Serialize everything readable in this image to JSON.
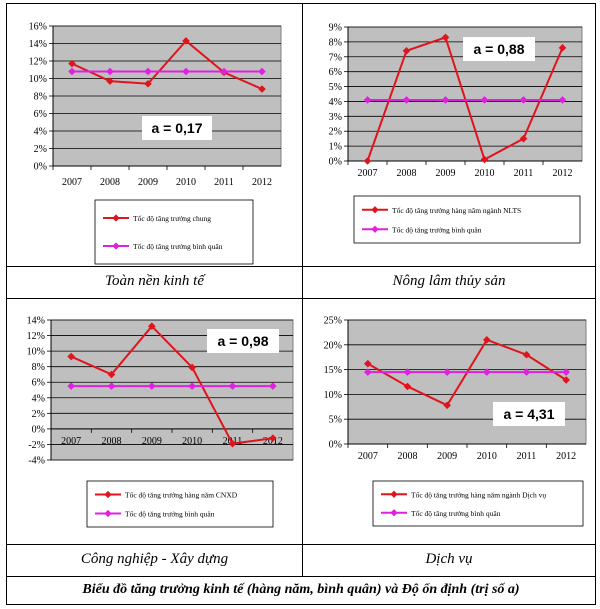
{
  "colors": {
    "series_red": "#e0141c",
    "series_magenta": "#e020e0",
    "plot_bg": "#bfbfbf",
    "grid": "#000000"
  },
  "legend_markers": {
    "line": "diamond-marker-icon"
  },
  "captions": [
    "Toàn nền kinh tế",
    "Nông lâm thủy sản",
    "Công nghiệp - Xây dựng",
    "Dịch vụ"
  ],
  "footer": "Biểu đồ tăng trưởng kinh tế (hàng năm, bình quân) và Độ ổn định (trị số a)",
  "chart_data": [
    {
      "type": "line",
      "title": "Toàn nền kinh tế",
      "categories": [
        "2007",
        "2008",
        "2009",
        "2010",
        "2011",
        "2012"
      ],
      "y_ticks": [
        "0%",
        "2%",
        "4%",
        "6%",
        "8%",
        "10%",
        "12%",
        "14%",
        "16%"
      ],
      "ylim": [
        0,
        16
      ],
      "annotation": "a = 0,17",
      "series": [
        {
          "name": "Tốc độ tăng trưởng chung",
          "values": [
            11.7,
            9.7,
            9.4,
            14.3,
            10.7,
            8.8
          ]
        },
        {
          "name": "Tốc độ tăng trưởng bình quân",
          "values": [
            10.8,
            10.8,
            10.8,
            10.8,
            10.8,
            10.8
          ]
        }
      ]
    },
    {
      "type": "line",
      "title": "Nông lâm thủy sản",
      "categories": [
        "2007",
        "2008",
        "2009",
        "2010",
        "2011",
        "2012"
      ],
      "y_ticks": [
        "0%",
        "1%",
        "2%",
        "3%",
        "4%",
        "5%",
        "6%",
        "7%",
        "8%",
        "9%"
      ],
      "ylim": [
        0,
        9
      ],
      "annotation": "a = 0,88",
      "series": [
        {
          "name": "Tốc độ tăng trưởng hàng năm ngành NLTS",
          "values": [
            0,
            7.4,
            8.3,
            0.1,
            1.5,
            7.6
          ]
        },
        {
          "name": "Tốc độ tăng trưởng bình quân",
          "values": [
            4.1,
            4.1,
            4.1,
            4.1,
            4.1,
            4.1
          ]
        }
      ]
    },
    {
      "type": "line",
      "title": "Công nghiệp - Xây dựng",
      "categories": [
        "2007",
        "2008",
        "2009",
        "2010",
        "2011",
        "2012"
      ],
      "y_ticks": [
        "-4%",
        "-2%",
        "0%",
        "2%",
        "4%",
        "6%",
        "8%",
        "10%",
        "12%",
        "14%"
      ],
      "ylim": [
        -4,
        14
      ],
      "annotation": "a = 0,98",
      "series": [
        {
          "name": "Tốc độ tăng trưởng hàng năm CNXD",
          "values": [
            9.3,
            7.0,
            13.2,
            7.9,
            -1.9,
            -1.2
          ]
        },
        {
          "name": "Tốc độ tăng trưởng bình quân",
          "values": [
            5.5,
            5.5,
            5.5,
            5.5,
            5.5,
            5.5
          ]
        }
      ]
    },
    {
      "type": "line",
      "title": "Dịch vụ",
      "categories": [
        "2007",
        "2008",
        "2009",
        "2010",
        "2011",
        "2012"
      ],
      "y_ticks": [
        "0%",
        "5%",
        "10%",
        "15%",
        "20%",
        "25%"
      ],
      "ylim": [
        0,
        25
      ],
      "annotation": "a = 4,31",
      "series": [
        {
          "name": "Tốc độ tăng trưởng hàng năm ngành Dịch vụ",
          "values": [
            16.2,
            11.6,
            7.8,
            21.0,
            18.0,
            12.9
          ]
        },
        {
          "name": "Tốc độ tăng trưởng bình quân",
          "values": [
            14.5,
            14.5,
            14.5,
            14.5,
            14.5,
            14.5
          ]
        }
      ]
    }
  ]
}
